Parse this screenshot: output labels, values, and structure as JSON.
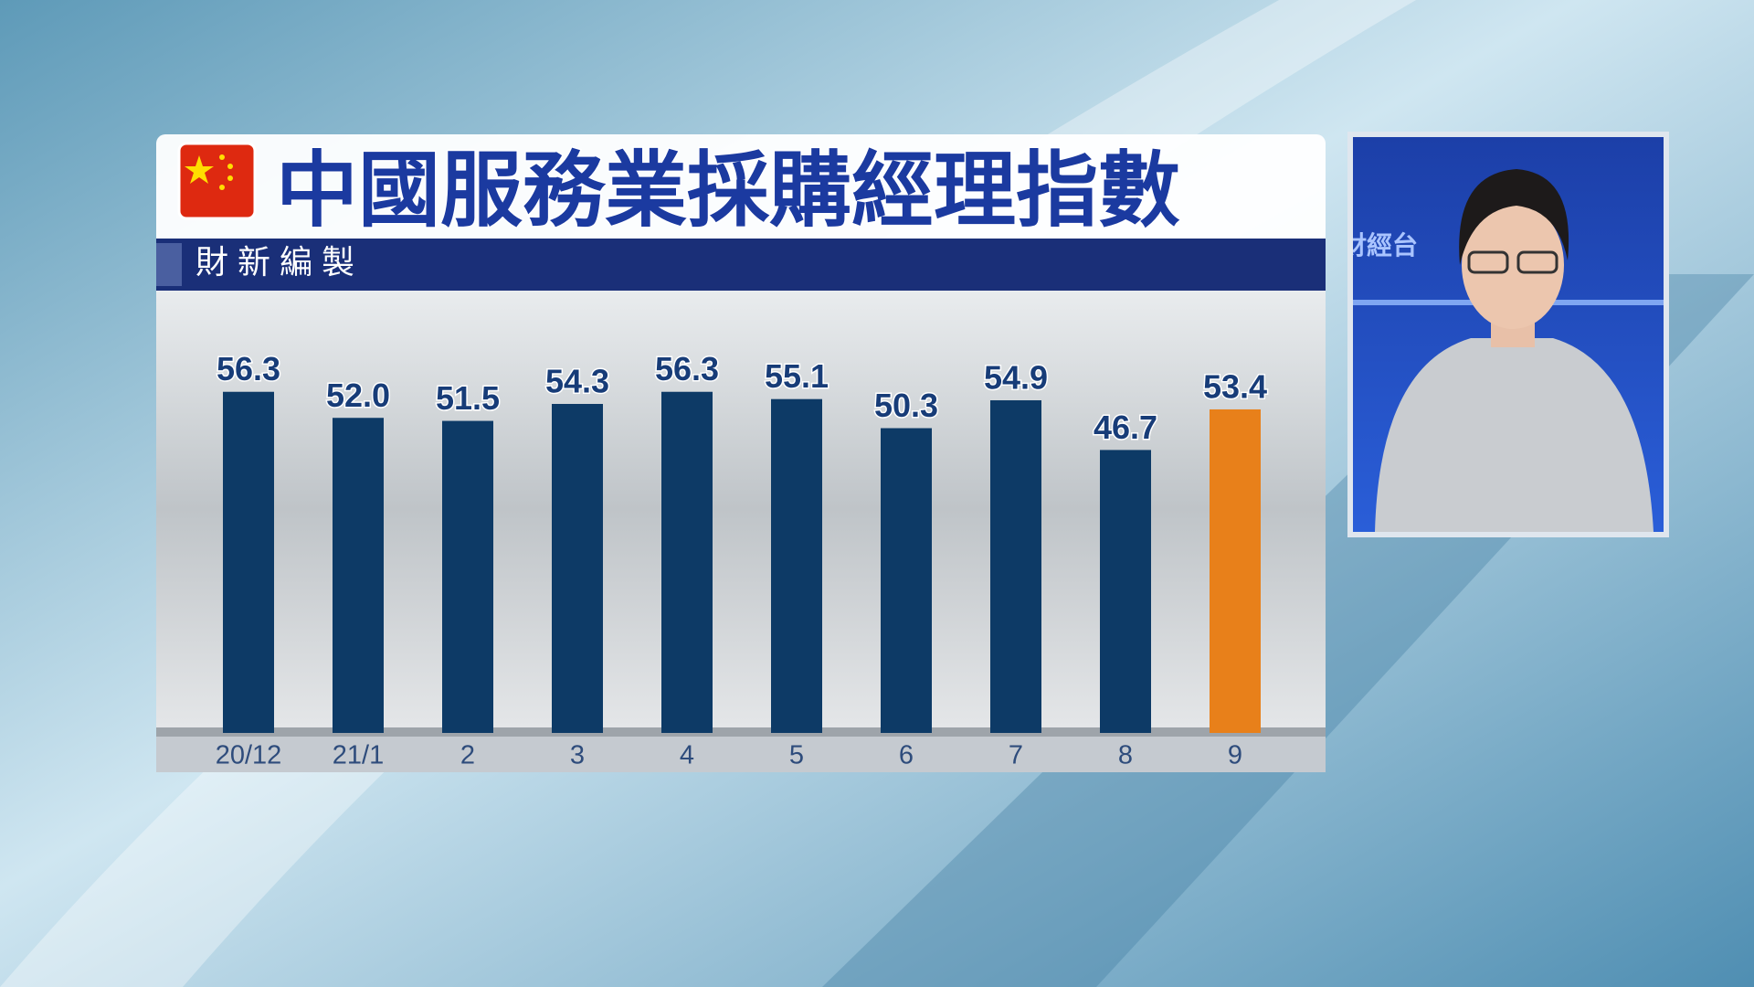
{
  "chart_data": {
    "type": "bar",
    "title": "中國服務業採購經理指數",
    "subtitle": "財新編製",
    "channel": "財經台",
    "categories": [
      "20/12",
      "21/1",
      "2",
      "3",
      "4",
      "5",
      "6",
      "7",
      "8",
      "9"
    ],
    "values": [
      56.3,
      52,
      51.5,
      54.3,
      56.3,
      55.1,
      50.3,
      54.9,
      46.7,
      53.4
    ],
    "value_labels": [
      "56.3",
      "52.0",
      "51.5",
      "54.3",
      "56.3",
      "55.1",
      "50.3",
      "54.9",
      "46.7",
      "53.4"
    ],
    "colors": [
      "#0d3a66",
      "#0d3a66",
      "#0d3a66",
      "#0d3a66",
      "#0d3a66",
      "#0d3a66",
      "#0d3a66",
      "#0d3a66",
      "#0d3a66",
      "#e8801a"
    ]
  }
}
